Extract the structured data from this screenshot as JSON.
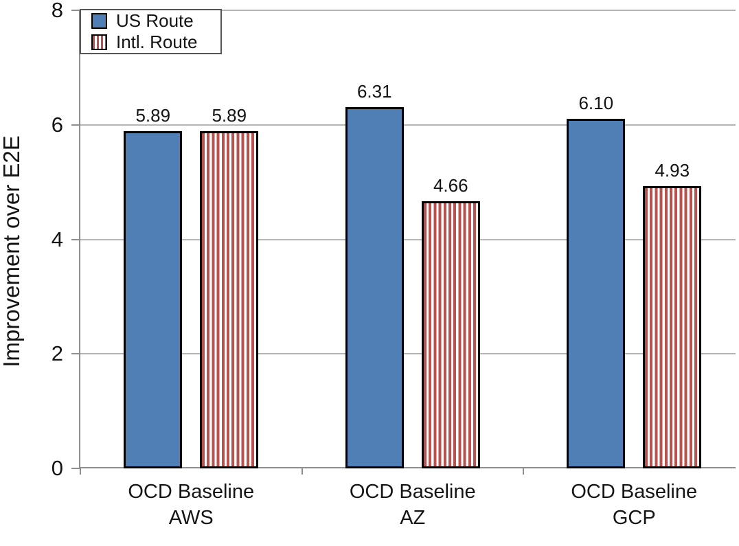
{
  "chart_data": {
    "type": "bar",
    "title": "",
    "xlabel": "",
    "ylabel": "Improvement over E2E",
    "ylim": [
      0,
      8
    ],
    "yticks": [
      0,
      2,
      4,
      6,
      8
    ],
    "grid": true,
    "legend_position": "top-left",
    "categories": [
      "OCD Baseline\nAWS",
      "OCD Baseline\nAZ",
      "OCD Baseline\nGCP"
    ],
    "series": [
      {
        "name": "US Route",
        "values": [
          5.89,
          6.31,
          6.1
        ],
        "labels": [
          "5.89",
          "6.31",
          "6.10"
        ],
        "pattern": "solid",
        "color": "#4f7fb5"
      },
      {
        "name": "Intl. Route",
        "values": [
          5.89,
          4.66,
          4.93
        ],
        "labels": [
          "5.89",
          "4.66",
          "4.93"
        ],
        "pattern": "vertical-stripes",
        "color": "#b9524e"
      }
    ],
    "colors": {
      "bar_border": "#000000",
      "gridline": "#b5b5b5",
      "axis": "#8f8f8f",
      "text": "#141414",
      "background": "#ffffff",
      "legend_border": "#565656"
    }
  }
}
